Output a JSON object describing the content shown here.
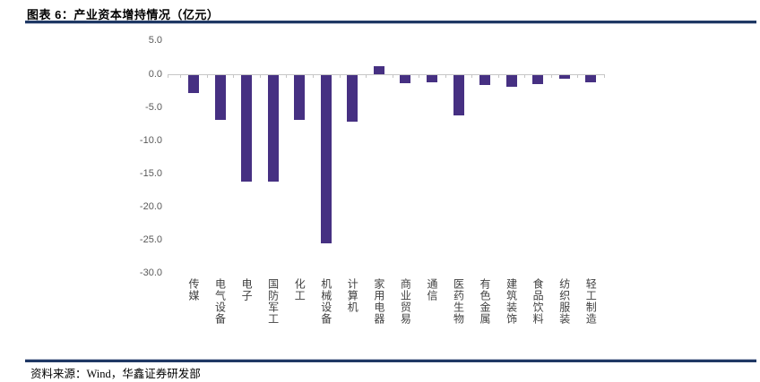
{
  "header": {
    "title": "图表 6：产业资本增持情况（亿元）"
  },
  "footer": {
    "source": "资料来源：Wind，华鑫证券研发部"
  },
  "colors": {
    "bar": "#463082",
    "rule_navy": "#1F3864",
    "rule_light": "#C5CAD9",
    "axis_line": "#C6C6C6",
    "y_label": "#595959",
    "x_label": "#404040"
  },
  "chart_data": {
    "type": "bar",
    "title": "产业资本增持情况（亿元）",
    "xlabel": "",
    "ylabel": "",
    "unit": "亿元",
    "categories": [
      "传媒",
      "电气设备",
      "电子",
      "国防军工",
      "化工",
      "机械设备",
      "计算机",
      "家用电器",
      "商业贸易",
      "通信",
      "医药生物",
      "有色金属",
      "建筑装饰",
      "食品饮料",
      "纺织服装",
      "轻工制造"
    ],
    "values": [
      -2.7,
      -6.7,
      -16.0,
      -16.0,
      -6.8,
      -25.4,
      -7.0,
      1.2,
      -1.2,
      -1.1,
      -6.1,
      -1.5,
      -1.8,
      -1.4,
      -0.5,
      -1.1
    ],
    "ylim": [
      -30,
      5
    ],
    "yticks": [
      5,
      0,
      -5,
      -10,
      -15,
      -20,
      -25,
      -30
    ],
    "ytick_labels": [
      "5.0",
      "0.0",
      "-5.0",
      "-10.0",
      "-15.0",
      "-20.0",
      "-25.0",
      "-30.0"
    ],
    "grid": false,
    "legend": false,
    "bar_color": "#463082"
  }
}
